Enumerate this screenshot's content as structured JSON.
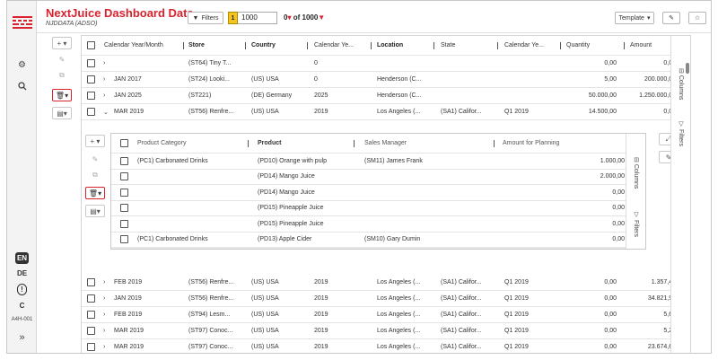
{
  "app": {
    "title": "NextJuice Dashboard Data",
    "subtitle": "NJDDATA (ADSO)"
  },
  "toolbar": {
    "filters_label": "Filters",
    "level": "1",
    "rows_value": "1000",
    "count_prefix": "0",
    "count_sep": "of",
    "count_total": "1000",
    "count_marker": "▼",
    "template_label": "Template"
  },
  "sidebar": {
    "langs": [
      "EN",
      "DE",
      "!",
      "C"
    ],
    "user_id": "A4H-001"
  },
  "columns": [
    "Calendar Year/Month",
    "Store",
    "Country",
    "Calendar Ye...",
    "Location",
    "State",
    "Calendar Ye...",
    "Quantity",
    "Amount"
  ],
  "rows_top": [
    {
      "month": "",
      "store": "(ST64) Tiny T...",
      "country": "",
      "year": "0",
      "location": "",
      "state": "",
      "cal": "",
      "qty": "0,00",
      "amount": "0,00"
    },
    {
      "month": "JAN 2017",
      "store": "(ST24) Looki...",
      "country": "(US) USA",
      "year": "0",
      "location": "Henderson (C...",
      "state": "",
      "cal": "",
      "qty": "5,00",
      "amount": "200.000,00"
    },
    {
      "month": "JAN 2025",
      "store": "(ST221)",
      "country": "(DE) Germany",
      "year": "2025",
      "location": "Henderson (C...",
      "state": "",
      "cal": "",
      "qty": "50.000,00",
      "amount": "1.250.000,00"
    },
    {
      "month": "MAR 2019",
      "store": "(ST56) Renfre...",
      "country": "(US) USA",
      "year": "2019",
      "location": "Los Angeles (...",
      "state": "(SA1) Califor...",
      "cal": "Q1 2019",
      "qty": "14.500,00",
      "amount": "0,00"
    }
  ],
  "rows_bottom": [
    {
      "month": "FEB 2019",
      "store": "(ST56) Renfre...",
      "country": "(US) USA",
      "year": "2019",
      "location": "Los Angeles (...",
      "state": "(SA1) Califor...",
      "cal": "Q1 2019",
      "qty": "0,00",
      "amount": "1.357,48"
    },
    {
      "month": "JAN 2019",
      "store": "(ST56) Renfre...",
      "country": "(US) USA",
      "year": "2019",
      "location": "Los Angeles (...",
      "state": "(SA1) Califor...",
      "cal": "Q1 2019",
      "qty": "0,00",
      "amount": "34.821,94"
    },
    {
      "month": "FEB 2019",
      "store": "(ST94) Lesm...",
      "country": "(US) USA",
      "year": "2019",
      "location": "Los Angeles (...",
      "state": "(SA1) Califor...",
      "cal": "Q1 2019",
      "qty": "0,00",
      "amount": "5,63"
    },
    {
      "month": "MAR 2019",
      "store": "(ST97) Conoc...",
      "country": "(US) USA",
      "year": "2019",
      "location": "Los Angeles (...",
      "state": "(SA1) Califor...",
      "cal": "Q1 2019",
      "qty": "0,00",
      "amount": "5,29"
    },
    {
      "month": "MAR 2019",
      "store": "(ST97) Conoc...",
      "country": "(US) USA",
      "year": "2019",
      "location": "Los Angeles (...",
      "state": "(SA1) Califor...",
      "cal": "Q1 2019",
      "qty": "0,00",
      "amount": "23.674,64"
    }
  ],
  "detail_columns": [
    "Product Category",
    "Product",
    "Sales Manager",
    "Amount for Planning"
  ],
  "detail_rows": [
    {
      "category": "(PC1) Carbonated Drinks",
      "product": "(PD10) Orange with pulp",
      "manager": "(SM11) James Frank",
      "amount": "1.000,00"
    },
    {
      "category": "",
      "product": "(PD14) Mango Juice",
      "manager": "",
      "amount": "2.000,00"
    },
    {
      "category": "",
      "product": "(PD14) Mango Juice",
      "manager": "",
      "amount": "0,00"
    },
    {
      "category": "",
      "product": "(PD15) Pineapple Juice",
      "manager": "",
      "amount": "0,00"
    },
    {
      "category": "",
      "product": "(PD15) Pineapple Juice",
      "manager": "",
      "amount": "0,00"
    },
    {
      "category": "(PC1) Carbonated Drinks",
      "product": "(PD13) Apple Cider",
      "manager": "(SM10) Gary Dumin",
      "amount": "0,00"
    }
  ],
  "side_panel": {
    "columns_label": "Columns",
    "filters_label": "Filters"
  },
  "colors": {
    "brand": "#d9232e",
    "level": "#f6c51a"
  }
}
